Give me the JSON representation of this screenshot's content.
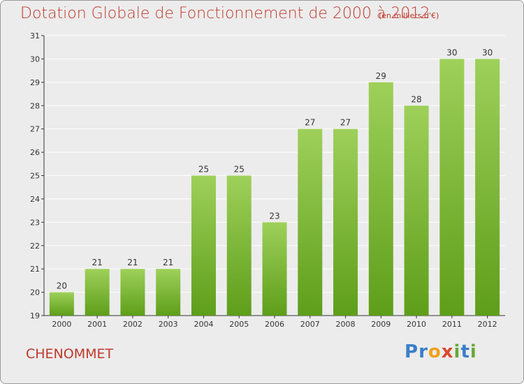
{
  "header": {
    "title": "Dotation Globale de Fonctionnement de 2000 à 2012",
    "unit": "(en milliers d'€)"
  },
  "footer": {
    "location": "CHENOMMET",
    "logo_text": "Proxiti",
    "logo_letters": [
      {
        "char": "P",
        "color": "#3a7fc9"
      },
      {
        "char": "r",
        "color": "#3a7fc9"
      },
      {
        "char": "o",
        "color": "#f0a11e"
      },
      {
        "char": "x",
        "color": "#d94a2b"
      },
      {
        "char": "i",
        "color": "#6aa83a"
      },
      {
        "char": "t",
        "color": "#3a7fc9"
      },
      {
        "char": "i",
        "color": "#6aa83a"
      }
    ]
  },
  "colors": {
    "bar_top": "#9ed05a",
    "bar_bottom": "#5e9e1a",
    "accent_text": "#c0392b",
    "axis": "#333333",
    "grid": "#ffffff"
  },
  "chart_data": {
    "type": "bar",
    "categories": [
      "2000",
      "2001",
      "2002",
      "2003",
      "2004",
      "2005",
      "2006",
      "2007",
      "2008",
      "2009",
      "2010",
      "2011",
      "2012"
    ],
    "values": [
      20,
      21,
      21,
      21,
      25,
      25,
      23,
      27,
      27,
      29,
      28,
      30,
      30
    ],
    "ylim": [
      19,
      31
    ],
    "yticks": [
      19,
      20,
      21,
      22,
      23,
      24,
      25,
      26,
      27,
      28,
      29,
      30,
      31
    ],
    "grid": true,
    "data_labels": true
  }
}
